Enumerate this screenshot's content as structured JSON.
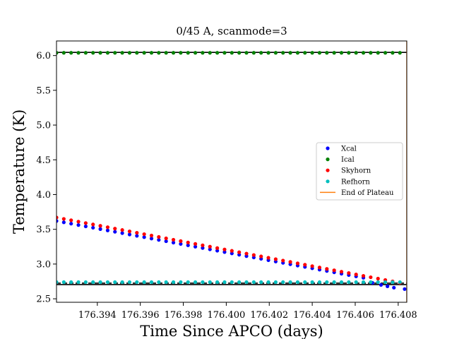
{
  "chart_data": {
    "type": "scatter",
    "title": "0/45 A, scanmode=3",
    "xlabel": "Time Since APCO (days)",
    "ylabel": "Temperature (K)",
    "xlim": [
      176.3921,
      176.4084
    ],
    "ylim": [
      2.45,
      6.21
    ],
    "x_ticks": [
      176.394,
      176.396,
      176.398,
      176.4,
      176.402,
      176.404,
      176.406,
      176.408
    ],
    "x_tick_labels": [
      "176.394",
      "176.396",
      "176.398",
      "176.400",
      "176.402",
      "176.404",
      "176.406",
      "176.408"
    ],
    "y_ticks": [
      2.5,
      3.0,
      3.5,
      4.0,
      4.5,
      5.0,
      5.5,
      6.0
    ],
    "y_tick_labels": [
      "2.5",
      "3.0",
      "3.5",
      "4.0",
      "4.5",
      "5.0",
      "5.5",
      "6.0"
    ],
    "grid": false,
    "legend_position": "center-right",
    "series": [
      {
        "name": "Xcal",
        "color": "#0000ff",
        "kind": "scatter",
        "x_start": 176.3921,
        "x_step": 0.00034,
        "n": 48,
        "y_start": 3.62,
        "y_slope_per_day": -57.2,
        "tail": [
          [
            176.4068,
            2.73
          ],
          [
            176.4072,
            2.7
          ],
          [
            176.4075,
            2.68
          ],
          [
            176.4078,
            2.66
          ],
          [
            176.4083,
            2.64
          ]
        ]
      },
      {
        "name": "Ical",
        "color": "#008000",
        "kind": "scatter",
        "x_start": 176.3921,
        "x_step": 0.00034,
        "n": 48,
        "y_value": 6.04
      },
      {
        "name": "Skyhorn",
        "color": "#ff0000",
        "kind": "scatter",
        "x_start": 176.3921,
        "x_step": 0.00034,
        "n": 48,
        "y_start": 3.67,
        "y_slope_per_day": -58.8
      },
      {
        "name": "Refhorn",
        "color": "#00bfbf",
        "kind": "scatter",
        "x_start": 176.3921,
        "x_step": 0.00034,
        "n": 48,
        "y_value": 2.74
      },
      {
        "name": "End of Plateau",
        "color": "#ff7f0e",
        "kind": "vline",
        "x": 176.4084
      }
    ],
    "reference_lines": [
      {
        "y": 6.045,
        "color": "#000000",
        "style": "solid"
      },
      {
        "y": 2.725,
        "color": "#000000",
        "style": "dashed"
      },
      {
        "y": 2.705,
        "color": "#000000",
        "style": "solid"
      }
    ]
  }
}
